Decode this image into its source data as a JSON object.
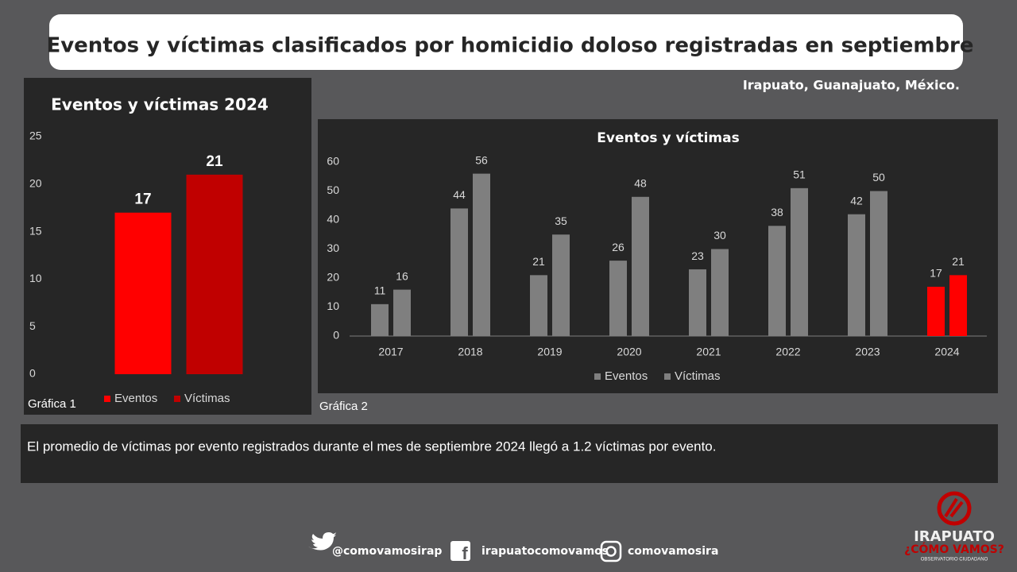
{
  "title": "Eventos y víctimas clasificados por homicidio doloso registradas en septiembre",
  "location": "Irapuato, Guanajuato, México.",
  "chart_data": [
    {
      "type": "bar",
      "title": "Eventos y víctimas 2024",
      "caption": "Gráfica 1",
      "categories": [
        "Eventos",
        "Víctimas"
      ],
      "values": [
        17,
        21
      ],
      "colors": [
        "#ff0000",
        "#c00000"
      ],
      "ylim": [
        0,
        25
      ],
      "yticks": [
        0,
        5,
        10,
        15,
        20,
        25
      ],
      "legend": "bottom"
    },
    {
      "type": "bar",
      "title": "Eventos y víctimas",
      "caption": "Gráfica 2",
      "categories": [
        "2017",
        "2018",
        "2019",
        "2020",
        "2021",
        "2022",
        "2023",
        "2024"
      ],
      "series": [
        {
          "name": "Eventos",
          "color": "#7f7f7f",
          "values": [
            11,
            44,
            21,
            26,
            23,
            38,
            42,
            17
          ],
          "colors": [
            "#7f7f7f",
            "#7f7f7f",
            "#7f7f7f",
            "#7f7f7f",
            "#7f7f7f",
            "#7f7f7f",
            "#7f7f7f",
            "#ff0000"
          ]
        },
        {
          "name": "Víctimas",
          "color": "#7f7f7f",
          "values": [
            16,
            56,
            35,
            48,
            30,
            51,
            50,
            21
          ],
          "colors": [
            "#7f7f7f",
            "#7f7f7f",
            "#7f7f7f",
            "#7f7f7f",
            "#7f7f7f",
            "#7f7f7f",
            "#7f7f7f",
            "#ff0000"
          ]
        }
      ],
      "ylim": [
        0,
        60
      ],
      "yticks": [
        0,
        10,
        20,
        30,
        40,
        50,
        60
      ],
      "legend": "bottom"
    }
  ],
  "note": "El promedio de víctimas por evento registrados durante el mes de septiembre 2024 llegó a 1.2 víctimas por evento.",
  "footer": {
    "twitter": "@comovamosirap",
    "facebook": "irapuatocomovamos",
    "instagram": "comovamosira"
  },
  "logo": {
    "name": "IRAPUATO",
    "tagline": "¿CÓMO VAMOS?",
    "subtitle": "OBSERVATORIO CIUDADANO"
  }
}
